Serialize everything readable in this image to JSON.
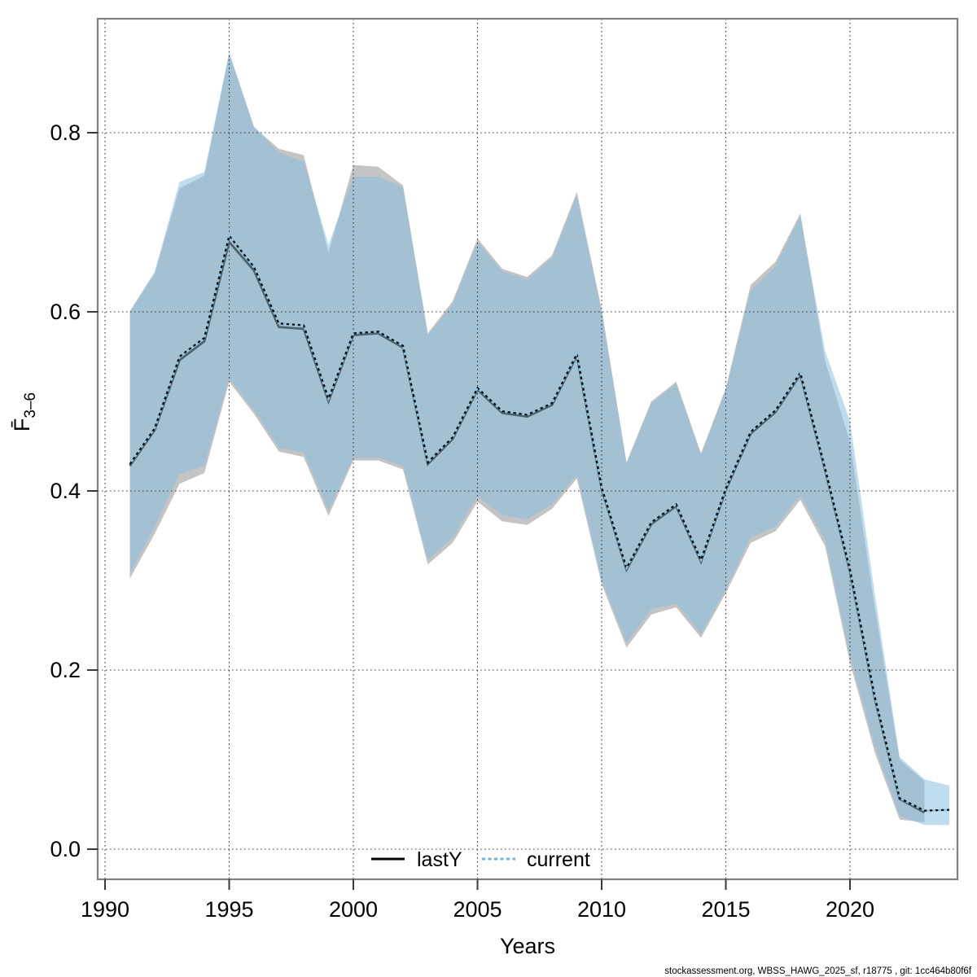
{
  "watermark": "stockassessment.org, WBSS_HAWG_2025_sf, r18775 , git: 1cc464b80f6f",
  "legend": {
    "items": [
      {
        "label": "lastY",
        "color": "#000000",
        "style": "solid"
      },
      {
        "label": "current",
        "color": "#6fb3d9",
        "style": "dotted"
      }
    ]
  },
  "chart_data": {
    "type": "area",
    "title": "",
    "xlabel": "Years",
    "ylabel": {
      "base": "F̄",
      "subscript": "3–6"
    },
    "x_ticks": [
      1990,
      1995,
      2000,
      2005,
      2010,
      2015,
      2020
    ],
    "y_ticks": [
      0.0,
      0.2,
      0.4,
      0.6,
      0.8
    ],
    "xlim": [
      1989.7,
      2024.3
    ],
    "ylim": [
      -0.034,
      0.927
    ],
    "grid": true,
    "legend_position": "bottom-center-inside",
    "series": [
      {
        "name": "lastY",
        "line_color": "#000000",
        "band_color": "#c4c4c4",
        "years": [
          1991,
          1992,
          1993,
          1994,
          1995,
          1996,
          1997,
          1998,
          1999,
          2000,
          2001,
          2002,
          2003,
          2004,
          2005,
          2006,
          2007,
          2008,
          2009,
          2010,
          2011,
          2012,
          2013,
          2014,
          2015,
          2016,
          2017,
          2018,
          2019,
          2020,
          2021,
          2022,
          2023
        ],
        "f": [
          0.428,
          0.468,
          0.546,
          0.567,
          0.678,
          0.646,
          0.583,
          0.581,
          0.5,
          0.574,
          0.576,
          0.56,
          0.43,
          0.458,
          0.513,
          0.487,
          0.483,
          0.496,
          0.551,
          0.402,
          0.312,
          0.363,
          0.383,
          0.321,
          0.401,
          0.464,
          0.488,
          0.53,
          0.423,
          0.31,
          0.168,
          0.056,
          0.041
        ],
        "upper": [
          0.6,
          0.643,
          0.738,
          0.752,
          0.888,
          0.806,
          0.782,
          0.775,
          0.666,
          0.764,
          0.762,
          0.741,
          0.576,
          0.612,
          0.682,
          0.648,
          0.639,
          0.663,
          0.734,
          0.603,
          0.432,
          0.5,
          0.522,
          0.442,
          0.515,
          0.63,
          0.656,
          0.71,
          0.545,
          0.455,
          0.27,
          0.1,
          0.076
        ],
        "lower": [
          0.302,
          0.352,
          0.408,
          0.42,
          0.522,
          0.486,
          0.444,
          0.438,
          0.372,
          0.434,
          0.434,
          0.424,
          0.318,
          0.342,
          0.388,
          0.366,
          0.362,
          0.38,
          0.414,
          0.296,
          0.225,
          0.262,
          0.27,
          0.236,
          0.286,
          0.342,
          0.355,
          0.39,
          0.338,
          0.208,
          0.108,
          0.033,
          0.03
        ]
      },
      {
        "name": "current",
        "line_color": "#6fb3d9",
        "band_color": "rgba(138,191,224,0.55)",
        "years": [
          1991,
          1992,
          1993,
          1994,
          1995,
          1996,
          1997,
          1998,
          1999,
          2000,
          2001,
          2002,
          2003,
          2004,
          2005,
          2006,
          2007,
          2008,
          2009,
          2010,
          2011,
          2012,
          2013,
          2014,
          2015,
          2016,
          2017,
          2018,
          2019,
          2020,
          2021,
          2022,
          2023,
          2024
        ],
        "f": [
          0.43,
          0.47,
          0.55,
          0.571,
          0.685,
          0.65,
          0.587,
          0.585,
          0.503,
          0.576,
          0.578,
          0.562,
          0.432,
          0.46,
          0.515,
          0.489,
          0.485,
          0.498,
          0.553,
          0.404,
          0.314,
          0.365,
          0.385,
          0.323,
          0.403,
          0.466,
          0.49,
          0.532,
          0.425,
          0.312,
          0.17,
          0.057,
          0.043,
          0.044
        ],
        "upper": [
          0.601,
          0.645,
          0.745,
          0.756,
          0.89,
          0.807,
          0.778,
          0.768,
          0.675,
          0.751,
          0.751,
          0.739,
          0.574,
          0.609,
          0.678,
          0.645,
          0.636,
          0.66,
          0.73,
          0.6,
          0.43,
          0.498,
          0.52,
          0.44,
          0.513,
          0.624,
          0.651,
          0.707,
          0.556,
          0.478,
          0.285,
          0.103,
          0.078,
          0.071
        ],
        "lower": [
          0.307,
          0.36,
          0.419,
          0.428,
          0.525,
          0.49,
          0.448,
          0.443,
          0.378,
          0.437,
          0.437,
          0.428,
          0.323,
          0.348,
          0.394,
          0.373,
          0.368,
          0.385,
          0.418,
          0.3,
          0.23,
          0.268,
          0.274,
          0.24,
          0.29,
          0.348,
          0.36,
          0.395,
          0.345,
          0.215,
          0.115,
          0.037,
          0.027,
          0.027
        ]
      }
    ]
  }
}
